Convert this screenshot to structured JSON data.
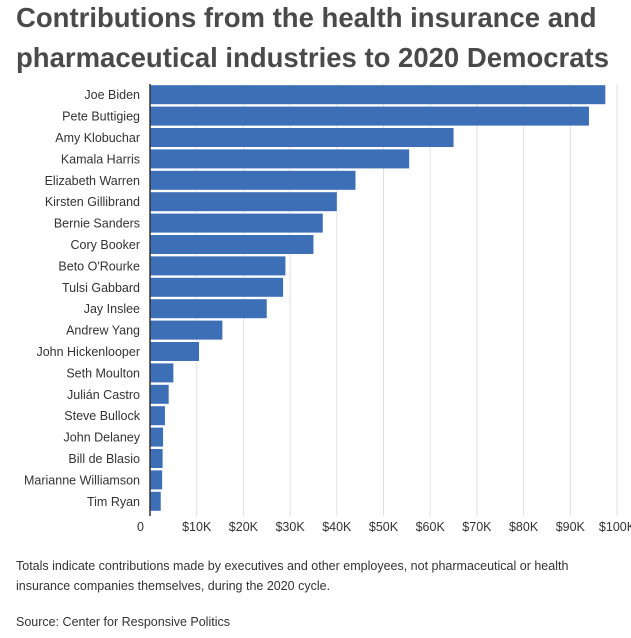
{
  "chart_data": {
    "type": "bar",
    "orientation": "horizontal",
    "title": "Contributions from the health insurance and pharmaceutical industries to 2020 Democrats",
    "categories": [
      "Joe Biden",
      "Pete Buttigieg",
      "Amy Klobuchar",
      "Kamala Harris",
      "Elizabeth Warren",
      "Kirsten Gillibrand",
      "Bernie Sanders",
      "Cory Booker",
      "Beto O'Rourke",
      "Tulsi Gabbard",
      "Jay Inslee",
      "Andrew Yang",
      "John Hickenlooper",
      "Seth Moulton",
      "Julián Castro",
      "Steve Bullock",
      "John Delaney",
      "Bill de Blasio",
      "Marianne Williamson",
      "Tim Ryan"
    ],
    "values": [
      97500,
      94000,
      65000,
      55500,
      44000,
      40000,
      37000,
      35000,
      29000,
      28500,
      25000,
      15500,
      10500,
      5000,
      4000,
      3200,
      2800,
      2700,
      2600,
      2300
    ],
    "xlim": [
      0,
      100000
    ],
    "ticks": [
      {
        "value": 0,
        "label": "0"
      },
      {
        "value": 10000,
        "label": "$10K"
      },
      {
        "value": 20000,
        "label": "$20K"
      },
      {
        "value": 30000,
        "label": "$30K"
      },
      {
        "value": 40000,
        "label": "$40K"
      },
      {
        "value": 50000,
        "label": "$50K"
      },
      {
        "value": 60000,
        "label": "$60K"
      },
      {
        "value": 70000,
        "label": "$70K"
      },
      {
        "value": 80000,
        "label": "$80K"
      },
      {
        "value": 90000,
        "label": "$90K"
      },
      {
        "value": 100000,
        "label": "$100K"
      }
    ],
    "grid": true,
    "bar_color": "#3d6fb6",
    "grid_color": "#e0e0e0"
  },
  "footer": {
    "note": "Totals indicate contributions made by executives and other employees, not pharmaceutical or health insurance companies themselves, during the 2020 cycle.",
    "source": "Source: Center for Responsive Politics"
  }
}
